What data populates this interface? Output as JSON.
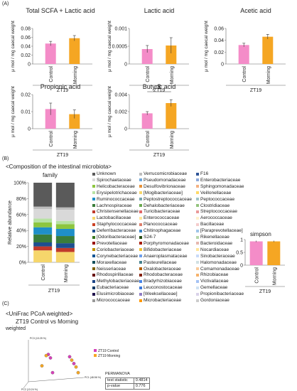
{
  "panels": {
    "a": "(A)",
    "b": "(B)",
    "c": "(C)"
  },
  "colors": {
    "control": "#f48cc8",
    "morning": "#f5a623",
    "axis": "#555555"
  },
  "ylabel_scfa": "μ mol / mg caecal weight",
  "group_label": "ZT19",
  "chart_data": [
    {
      "type": "bar",
      "title": "Total SCFA + Lactic acid",
      "categories": [
        "Control",
        "Morning"
      ],
      "values": [
        0.046,
        0.058
      ],
      "errors": [
        0.005,
        0.006
      ],
      "yticks": [
        "0",
        "0.02",
        "0.04",
        "0.06",
        "0.08"
      ],
      "ylim": [
        0,
        0.08
      ],
      "ylabel": "μ mol / mg caecal weight",
      "xgroup": "ZT19"
    },
    {
      "type": "bar",
      "title": "Lactic acid",
      "categories": [
        "Control",
        "Morning"
      ],
      "values": [
        0.00042,
        0.00052
      ],
      "errors": [
        0.0001,
        0.00022
      ],
      "yticks": [
        "0",
        "0.0005",
        "0.001"
      ],
      "ylim": [
        0,
        0.001
      ],
      "ylabel": "μ mol / mg caecal weight",
      "xgroup": "ZT19"
    },
    {
      "type": "bar",
      "title": "Acetic acid",
      "categories": [
        "Control",
        "Morning"
      ],
      "values": [
        0.032,
        0.046
      ],
      "errors": [
        0.003,
        0.004
      ],
      "yticks": [
        "0",
        "0.02",
        "0.04",
        "0.06"
      ],
      "ylim": [
        0,
        0.06
      ],
      "ylabel": "μ mol / mg caecal weight",
      "xgroup": "ZT19"
    },
    {
      "type": "bar",
      "title": "Propionic acid",
      "categories": [
        "Control",
        "Morning"
      ],
      "values": [
        0.0115,
        0.0085
      ],
      "errors": [
        0.0035,
        0.0025
      ],
      "yticks": [
        "0",
        "0.01",
        "0.02"
      ],
      "ylim": [
        0,
        0.02
      ],
      "ylabel": "μ mol / mg caecal weight",
      "xgroup": "ZT19"
    },
    {
      "type": "bar",
      "title": "Butyric acid",
      "categories": [
        "Control",
        "Morning"
      ],
      "values": [
        0.0018,
        0.003
      ],
      "errors": [
        0.0002,
        0.0004
      ],
      "yticks": [
        "0",
        "0.002",
        "0.004"
      ],
      "ylim": [
        0,
        0.004
      ],
      "ylabel": "μ mol / mg caecal weight",
      "xgroup": "ZT19",
      "annotation": "$"
    },
    {
      "type": "bar",
      "title": "",
      "stacked": true,
      "categories": [
        "Control",
        "Morning"
      ],
      "yticks": [
        "0%",
        "20%",
        "40%",
        "60%",
        "80%",
        "100%"
      ],
      "ylim": [
        0,
        100
      ],
      "ylabel": "Relative abundance",
      "xgroup": "ZT19",
      "series": [
        {
          "name": "Lactobacillaceae",
          "color": "#f6d66b",
          "values": [
            15,
            13
          ]
        },
        {
          "name": "Christensenellaceae",
          "color": "#c0392b",
          "values": [
            5,
            5
          ]
        },
        {
          "name": "Deferribacteraceae",
          "color": "#1e4f8f",
          "values": [
            5,
            6
          ]
        },
        {
          "name": "Lachnospiraceae",
          "color": "#3a7d3a",
          "values": [
            10,
            9
          ]
        },
        {
          "name": "Ruminococcaceae",
          "color": "#1f8fc8",
          "values": [
            9,
            9
          ]
        },
        {
          "name": "Helicobacteraceae",
          "color": "#8dc63f",
          "values": [
            6,
            6
          ]
        },
        {
          "name": "Erysipelotrichaceae",
          "color": "#b7e2a3",
          "values": [
            5,
            4
          ]
        },
        {
          "name": "Spirochaetaceae",
          "color": "#d9d9d9",
          "values": [
            12,
            14
          ]
        },
        {
          "name": "Verrucomicrobiaceae",
          "color": "#bdbdbd",
          "values": [
            3,
            3
          ]
        },
        {
          "name": "Unknown",
          "color": "#5a5a5a",
          "values": [
            30,
            31
          ]
        }
      ]
    },
    {
      "type": "bar",
      "title": "simpson",
      "categories": [
        "Control",
        "Morning"
      ],
      "values": [
        0.93,
        0.93
      ],
      "errors": [
        0.01,
        0.01
      ],
      "yticks": [
        "0",
        "0.5",
        "1"
      ],
      "ylim": [
        0,
        1
      ],
      "xgroup": "ZT19"
    },
    {
      "type": "scatter",
      "title": "",
      "xlabel": "PC1 (48.56 %)",
      "ylabel": "PC3 (13.25 %)",
      "zlabel": "PC2 (13.24 %)",
      "series": [
        {
          "name": "ZT19 Control",
          "color": "#d63fb9",
          "points": [
            [
              -0.2,
              0.45
            ],
            [
              -0.15,
              0.3
            ],
            [
              0.3,
              0.35
            ],
            [
              0.4,
              0.05
            ],
            [
              -0.1,
              -0.35
            ]
          ]
        },
        {
          "name": "ZT19 Morning",
          "color": "#f5a623",
          "points": [
            [
              -0.25,
              0.4
            ],
            [
              -0.35,
              -0.05
            ],
            [
              0.35,
              0.2
            ],
            [
              0.5,
              -0.35
            ],
            [
              0.45,
              -0.1
            ]
          ]
        }
      ]
    }
  ],
  "section_b": {
    "title": "<Composition of the intestinal microbiota>",
    "family_label": "family",
    "simpson_title": "simpson"
  },
  "legend_families": [
    [
      "Unknown",
      "#5a5a5a"
    ],
    [
      "Verrucomicrobiaceae",
      "#bdbdbd"
    ],
    [
      "F16",
      "#2f5597"
    ],
    [
      "Spirochaetaceae",
      "#d9d9d9"
    ],
    [
      "Pseudomonadaceae",
      "#6fa8dc"
    ],
    [
      "Enterobacteriaceae",
      "#8faadc"
    ],
    [
      "Helicobacteraceae",
      "#8dc63f"
    ],
    [
      "Desulfovibrionaceae",
      "#e69138"
    ],
    [
      "Sphingomonadaceae",
      "#f4b183"
    ],
    [
      "Erysipelotrichaceae",
      "#b7e2a3"
    ],
    [
      "[Mogibacteriaceae]",
      "#f6d66b"
    ],
    [
      "Veillonellaceae",
      "#ffd966"
    ],
    [
      "Ruminococcaceae",
      "#1f8fc8"
    ],
    [
      "Peptostreptococcaceae",
      "#76a5af"
    ],
    [
      "Peptococcaceae",
      "#a2c4c9"
    ],
    [
      "Lachnospiraceae",
      "#3a7d3a"
    ],
    [
      "Dehalobacteriaceae",
      "#6aa84f"
    ],
    [
      "Clostridiaceae",
      "#93c47d"
    ],
    [
      "Christensenellaceae",
      "#c0392b"
    ],
    [
      "Turicibacteraceae",
      "#e06666"
    ],
    [
      "Streptococcaceae",
      "#ea9999"
    ],
    [
      "Lactobacillaceae",
      "#f6d66b"
    ],
    [
      "Enterococcaceae",
      "#ffe599"
    ],
    [
      "Aerococcaceae",
      "#fff2cc"
    ],
    [
      "Staphylococcaceae",
      "#cc4125"
    ],
    [
      "Planococcaceae",
      "#dd7e6b"
    ],
    [
      "Bacillaceae",
      "#f4cccc"
    ],
    [
      "Deferribacteraceae",
      "#1e4f8f"
    ],
    [
      "Chitinophagaceae",
      "#3d85c6"
    ],
    [
      "[Paraprevotellaceae]",
      "#9fc5e8"
    ],
    [
      "[Odoribacteraceae]",
      "#38761d"
    ],
    [
      "S24-7",
      "#274e13"
    ],
    [
      "Rikenellaceae",
      "#b6d7a8"
    ],
    [
      "Prevotellaceae",
      "#990000"
    ],
    [
      "Porphyromonadaceae",
      "#a61c00"
    ],
    [
      "Bacteroidaceae",
      "#e6b8af"
    ],
    [
      "Coriobacteriaceae",
      "#bf9000"
    ],
    [
      "Bifidobacteriaceae",
      "#f1c232"
    ],
    [
      "Nocardiaceae",
      "#ffe599"
    ],
    [
      "Corynebacteriaceae",
      "#0b5394"
    ],
    [
      "Anaeroplasmataceae",
      "#6d9eeb"
    ],
    [
      "Sinobacteraceae",
      "#c9daf8"
    ],
    [
      "Moraxellaceae",
      "#134f5c"
    ],
    [
      "Pasteurellaceae",
      "#45818e"
    ],
    [
      "Halomonadaceae",
      "#d0e0e3"
    ],
    [
      "Neisseriaceae",
      "#7f6000"
    ],
    [
      "Oxalobacteraceae",
      "#b45f06"
    ],
    [
      "Comamonadaceae",
      "#f9cb9c"
    ],
    [
      "Rhodospirillaceae",
      "#660000"
    ],
    [
      "Rhodobacteraceae",
      "#85200c"
    ],
    [
      "Rhizobiaceae",
      "#f6b26b"
    ],
    [
      "Methylobacteriaceae",
      "#1c4587"
    ],
    [
      "Bradyrhizobiaceae",
      "#4a86e8"
    ],
    [
      "Victivallaceae",
      "#a4c2f4"
    ],
    [
      "Eubacteriaceae",
      "#073763"
    ],
    [
      "Leuconostocaceae",
      "#3c78d8"
    ],
    [
      "Gemellaceae",
      "#cfe2f3"
    ],
    [
      "Elusimicrobiaceae",
      "#20124d"
    ],
    [
      "[Weeksellaceae]",
      "#8e7cc3"
    ],
    [
      "Propionibacteriaceae",
      "#d9d2e9"
    ],
    [
      "Micrococcaceae",
      "#999999"
    ],
    [
      "Microbacteriaceae",
      "#ff9900"
    ],
    [
      "Gordoniaceae",
      "#cccccc"
    ]
  ],
  "section_c": {
    "title": "<UniFrac PCoA weighted>",
    "subtitle": "ZT19 Control vs Morning",
    "weighted": "weighted"
  },
  "pcoa_legend": [
    "ZT19 Control",
    "ZT19 Morning"
  ],
  "permanova": {
    "title": "PERMANOVA",
    "rows": [
      [
        "test statistic",
        "0.4814"
      ],
      [
        "p-value",
        "0.776"
      ]
    ]
  }
}
